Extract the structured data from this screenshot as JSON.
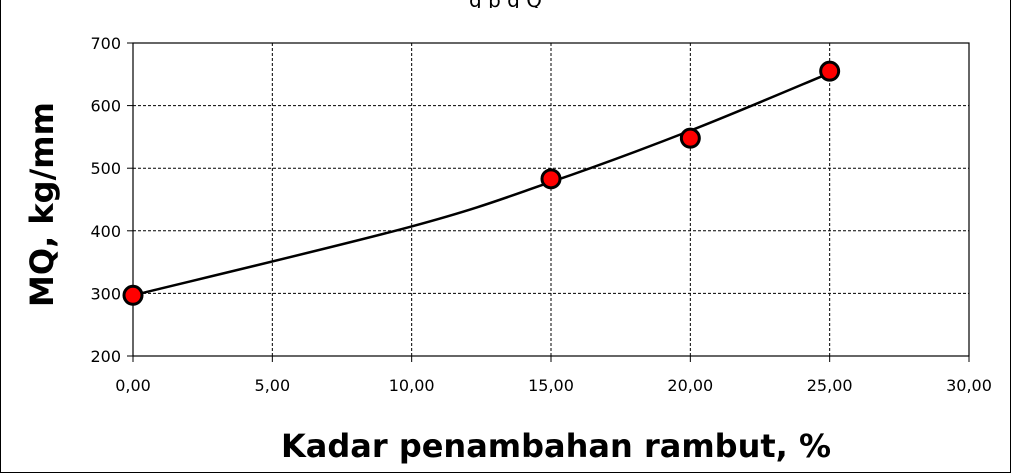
{
  "top_caption": "g                                   p                                                                g                    Q",
  "chart_data": {
    "type": "scatter",
    "title": "",
    "xlabel": "Kadar penambahan rambut, %",
    "ylabel": "MQ, kg/mm",
    "xlim": [
      0,
      30
    ],
    "ylim": [
      200,
      700
    ],
    "x_ticks": [
      0,
      5,
      10,
      15,
      20,
      25,
      30
    ],
    "x_tick_labels": [
      "0,00",
      "5,00",
      "10,00",
      "15,00",
      "20,00",
      "25,00",
      "30,00"
    ],
    "y_ticks": [
      200,
      300,
      400,
      500,
      600,
      700
    ],
    "y_tick_labels": [
      "200",
      "300",
      "400",
      "500",
      "600",
      "700"
    ],
    "grid": true,
    "legend": "none",
    "series": [
      {
        "x": [
          0,
          15,
          20,
          25
        ],
        "y": [
          297,
          483,
          548,
          655
        ],
        "marker_color": "#ff0000",
        "marker_edge": "#000000"
      }
    ],
    "trendline": {
      "x": [
        0,
        10,
        15,
        20,
        25
      ],
      "y": [
        297,
        407,
        478,
        560,
        652
      ],
      "color": "#000000"
    }
  }
}
